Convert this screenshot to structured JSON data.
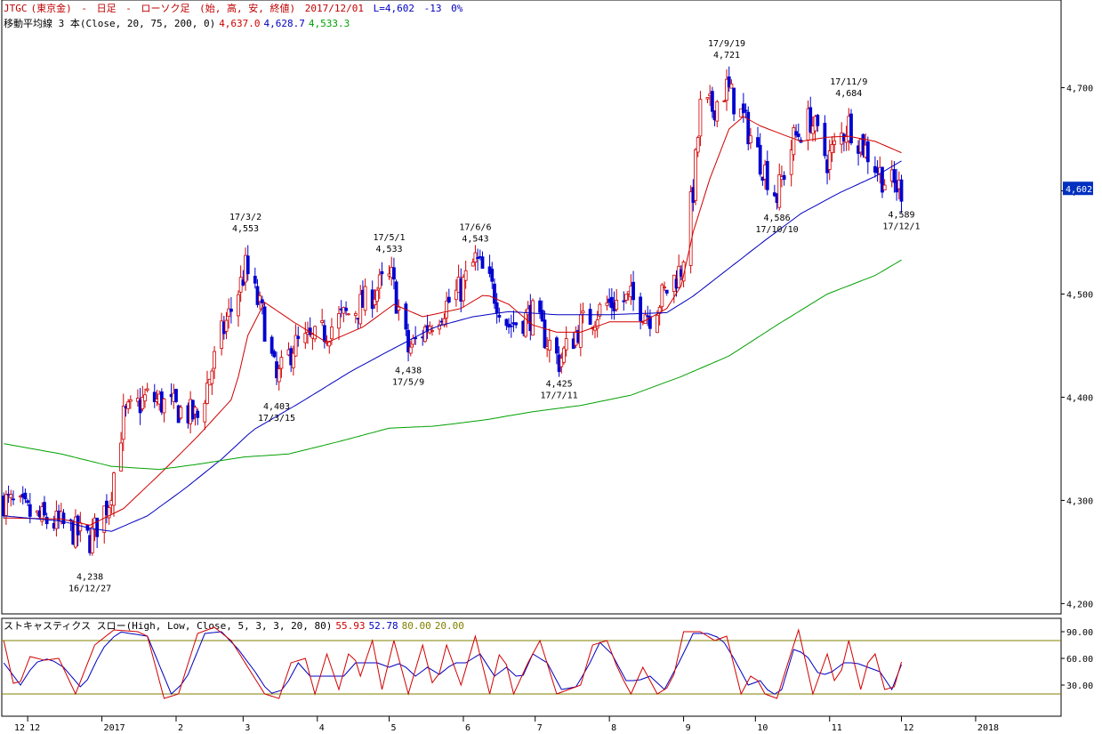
{
  "header": {
    "symbol": "JTGC",
    "instrument": "(東京金)",
    "sep1": "-",
    "period": "日足",
    "sep2": "-",
    "chart_type": "ローソク足",
    "ohlc_note": "(始, 高, 安, 終値)",
    "date": "2017/12/01",
    "last": "L=4,602",
    "change": "-13",
    "change_pct": "0%"
  },
  "ma_header": {
    "label": "移動平均線 3 本(Close, 20, 75, 200, 0)",
    "v20": "4,637.0",
    "v75": "4,628.7",
    "v200": "4,533.3"
  },
  "stoch_header": {
    "label": "ストキャスティクス スロー(High, Low, Close, 5, 3, 3, 20, 80)",
    "k": "55.93",
    "d": "52.78",
    "upper": "80.00",
    "lower": "20.00"
  },
  "price_tag": "4,602",
  "colors": {
    "ma20": "#d00000",
    "ma75": "#0000c0",
    "ma200": "#00a000",
    "candle_up_border": "#d00000",
    "candle_down": "#0000d0",
    "stoch_k": "#d00000",
    "stoch_d": "#0000c0",
    "stoch_lines": "#808000"
  },
  "chart_data": {
    "type": "candlestick",
    "y_axis": {
      "ticks": [
        "4,200",
        "4,300",
        "4,400",
        "4,500",
        "4,600",
        "4,700"
      ],
      "tick_values": [
        4200,
        4300,
        4400,
        4500,
        4600,
        4700
      ],
      "range": [
        4190,
        4785
      ]
    },
    "stoch_axis": {
      "ticks": [
        "30.00",
        "60.00",
        "90.00"
      ],
      "tick_values": [
        30,
        60,
        90
      ],
      "range": [
        0,
        100
      ]
    },
    "x_axis": {
      "labels": [
        "12",
        "2017",
        "2",
        "3",
        "4",
        "5",
        "6",
        "7",
        "8",
        "9",
        "10",
        "11",
        "12",
        "2018"
      ],
      "dates": [
        "2016-12-01",
        "2017-01-01",
        "2017-02-01",
        "2017-03-01",
        "2017-04-01",
        "2017-05-01",
        "2017-06-01",
        "2017-07-01",
        "2017-08-01",
        "2017-09-01",
        "2017-10-01",
        "2017-11-01",
        "2017-12-01",
        "2018-01-01"
      ]
    },
    "annotations": [
      {
        "date_label": "16/12/27",
        "price_label": "4,238",
        "value": 4238,
        "date": "2016-12-27",
        "pos": "below"
      },
      {
        "date_label": "17/3/2",
        "price_label": "4,553",
        "value": 4553,
        "date": "2017-03-02",
        "pos": "above"
      },
      {
        "date_label": "17/3/15",
        "price_label": "4,403",
        "value": 4403,
        "date": "2017-03-15",
        "pos": "below"
      },
      {
        "date_label": "17/5/1",
        "price_label": "4,533",
        "value": 4533,
        "date": "2017-05-01",
        "pos": "above"
      },
      {
        "date_label": "17/5/9",
        "price_label": "4,438",
        "value": 4438,
        "date": "2017-05-09",
        "pos": "below"
      },
      {
        "date_label": "17/6/6",
        "price_label": "4,543",
        "value": 4543,
        "date": "2017-06-06",
        "pos": "above"
      },
      {
        "date_label": "17/7/11",
        "price_label": "4,425",
        "value": 4425,
        "date": "2017-07-11",
        "pos": "below"
      },
      {
        "date_label": "17/9/19",
        "price_label": "4,721",
        "value": 4721,
        "date": "2017-09-19",
        "pos": "above"
      },
      {
        "date_label": "17/10/10",
        "price_label": "4,586",
        "value": 4586,
        "date": "2017-10-10",
        "pos": "below"
      },
      {
        "date_label": "17/11/9",
        "price_label": "4,684",
        "value": 4684,
        "date": "2017-11-09",
        "pos": "above"
      },
      {
        "date_label": "17/12/1",
        "price_label": "4,589",
        "value": 4589,
        "date": "2017-12-01",
        "pos": "below"
      }
    ],
    "close_anchors": [
      [
        "2016-11-21",
        4300
      ],
      [
        "2016-12-05",
        4283
      ],
      [
        "2016-12-15",
        4276
      ],
      [
        "2016-12-27",
        4262
      ],
      [
        "2017-01-04",
        4300
      ],
      [
        "2017-01-10",
        4380
      ],
      [
        "2017-01-20",
        4400
      ],
      [
        "2017-01-31",
        4390
      ],
      [
        "2017-02-10",
        4380
      ],
      [
        "2017-02-20",
        4460
      ],
      [
        "2017-02-28",
        4510
      ],
      [
        "2017-03-02",
        4525
      ],
      [
        "2017-03-09",
        4480
      ],
      [
        "2017-03-15",
        4415
      ],
      [
        "2017-03-22",
        4450
      ],
      [
        "2017-03-31",
        4455
      ],
      [
        "2017-04-10",
        4475
      ],
      [
        "2017-04-20",
        4490
      ],
      [
        "2017-04-28",
        4510
      ],
      [
        "2017-05-02",
        4515
      ],
      [
        "2017-05-09",
        4445
      ],
      [
        "2017-05-19",
        4475
      ],
      [
        "2017-05-31",
        4505
      ],
      [
        "2017-06-06",
        4533
      ],
      [
        "2017-06-13",
        4505
      ],
      [
        "2017-06-20",
        4470
      ],
      [
        "2017-06-30",
        4480
      ],
      [
        "2017-07-11",
        4435
      ],
      [
        "2017-07-20",
        4470
      ],
      [
        "2017-07-31",
        4490
      ],
      [
        "2017-08-10",
        4495
      ],
      [
        "2017-08-18",
        4480
      ],
      [
        "2017-08-31",
        4525
      ],
      [
        "2017-09-05",
        4600
      ],
      [
        "2017-09-08",
        4680
      ],
      [
        "2017-09-13",
        4680
      ],
      [
        "2017-09-19",
        4700
      ],
      [
        "2017-09-26",
        4670
      ],
      [
        "2017-10-03",
        4630
      ],
      [
        "2017-10-10",
        4595
      ],
      [
        "2017-10-17",
        4650
      ],
      [
        "2017-10-24",
        4670
      ],
      [
        "2017-10-31",
        4630
      ],
      [
        "2017-11-09",
        4665
      ],
      [
        "2017-11-16",
        4640
      ],
      [
        "2017-11-24",
        4610
      ],
      [
        "2017-12-01",
        4602
      ]
    ],
    "series": [
      {
        "name": "20",
        "anchors": [
          [
            "2016-11-21",
            4283
          ],
          [
            "2016-12-15",
            4282
          ],
          [
            "2016-12-27",
            4276
          ],
          [
            "2017-01-10",
            4292
          ],
          [
            "2017-01-25",
            4325
          ],
          [
            "2017-02-10",
            4362
          ],
          [
            "2017-02-25",
            4400
          ],
          [
            "2017-03-03",
            4460
          ],
          [
            "2017-03-10",
            4492
          ],
          [
            "2017-03-22",
            4473
          ],
          [
            "2017-04-05",
            4453
          ],
          [
            "2017-04-20",
            4468
          ],
          [
            "2017-05-03",
            4490
          ],
          [
            "2017-05-15",
            4478
          ],
          [
            "2017-05-31",
            4486
          ],
          [
            "2017-06-10",
            4500
          ],
          [
            "2017-06-20",
            4490
          ],
          [
            "2017-06-30",
            4470
          ],
          [
            "2017-07-10",
            4463
          ],
          [
            "2017-07-20",
            4463
          ],
          [
            "2017-08-01",
            4473
          ],
          [
            "2017-08-15",
            4473
          ],
          [
            "2017-08-25",
            4486
          ],
          [
            "2017-08-31",
            4508
          ],
          [
            "2017-09-05",
            4560
          ],
          [
            "2017-09-12",
            4612
          ],
          [
            "2017-09-20",
            4660
          ],
          [
            "2017-09-26",
            4672
          ],
          [
            "2017-10-03",
            4663
          ],
          [
            "2017-10-12",
            4655
          ],
          [
            "2017-10-20",
            4648
          ],
          [
            "2017-10-31",
            4652
          ],
          [
            "2017-11-09",
            4653
          ],
          [
            "2017-11-20",
            4648
          ],
          [
            "2017-12-01",
            4637
          ]
        ]
      },
      {
        "name": "75",
        "anchors": [
          [
            "2016-11-21",
            4285
          ],
          [
            "2016-12-15",
            4280
          ],
          [
            "2016-12-27",
            4273
          ],
          [
            "2017-01-05",
            4270
          ],
          [
            "2017-01-20",
            4285
          ],
          [
            "2017-02-05",
            4312
          ],
          [
            "2017-02-20",
            4340
          ],
          [
            "2017-03-05",
            4368
          ],
          [
            "2017-03-25",
            4395
          ],
          [
            "2017-04-15",
            4425
          ],
          [
            "2017-05-01",
            4445
          ],
          [
            "2017-05-20",
            4468
          ],
          [
            "2017-06-05",
            4478
          ],
          [
            "2017-06-20",
            4483
          ],
          [
            "2017-07-10",
            4480
          ],
          [
            "2017-08-01",
            4480
          ],
          [
            "2017-08-25",
            4482
          ],
          [
            "2017-09-05",
            4498
          ],
          [
            "2017-09-20",
            4525
          ],
          [
            "2017-10-05",
            4552
          ],
          [
            "2017-10-20",
            4578
          ],
          [
            "2017-11-05",
            4598
          ],
          [
            "2017-11-20",
            4614
          ],
          [
            "2017-12-01",
            4629
          ]
        ]
      },
      {
        "name": "200",
        "anchors": [
          [
            "2016-11-21",
            4355
          ],
          [
            "2016-12-15",
            4345
          ],
          [
            "2017-01-05",
            4333
          ],
          [
            "2017-01-25",
            4330
          ],
          [
            "2017-02-10",
            4335
          ],
          [
            "2017-03-01",
            4342
          ],
          [
            "2017-03-20",
            4345
          ],
          [
            "2017-04-10",
            4357
          ],
          [
            "2017-05-01",
            4370
          ],
          [
            "2017-05-20",
            4372
          ],
          [
            "2017-06-10",
            4378
          ],
          [
            "2017-06-30",
            4386
          ],
          [
            "2017-07-20",
            4392
          ],
          [
            "2017-08-10",
            4402
          ],
          [
            "2017-08-31",
            4420
          ],
          [
            "2017-09-20",
            4440
          ],
          [
            "2017-10-10",
            4470
          ],
          [
            "2017-10-31",
            4500
          ],
          [
            "2017-11-20",
            4518
          ],
          [
            "2017-12-01",
            4533
          ]
        ]
      }
    ],
    "stoch_k_anchors": [
      [
        "2016-11-21",
        80
      ],
      [
        "2016-11-26",
        20
      ],
      [
        "2016-12-02",
        62
      ],
      [
        "2016-12-08",
        58
      ],
      [
        "2016-12-14",
        60
      ],
      [
        "2016-12-21",
        20
      ],
      [
        "2016-12-29",
        75
      ],
      [
        "2017-01-06",
        92
      ],
      [
        "2017-01-16",
        90
      ],
      [
        "2017-01-20",
        85
      ],
      [
        "2017-01-27",
        15
      ],
      [
        "2017-02-02",
        20
      ],
      [
        "2017-02-10",
        88
      ],
      [
        "2017-02-17",
        95
      ],
      [
        "2017-02-24",
        80
      ],
      [
        "2017-03-03",
        50
      ],
      [
        "2017-03-10",
        20
      ],
      [
        "2017-03-16",
        15
      ],
      [
        "2017-03-21",
        55
      ],
      [
        "2017-03-27",
        60
      ],
      [
        "2017-03-31",
        20
      ],
      [
        "2017-04-05",
        65
      ],
      [
        "2017-04-10",
        25
      ],
      [
        "2017-04-15",
        75
      ],
      [
        "2017-04-19",
        40
      ],
      [
        "2017-04-24",
        80
      ],
      [
        "2017-04-28",
        25
      ],
      [
        "2017-05-03",
        80
      ],
      [
        "2017-05-09",
        20
      ],
      [
        "2017-05-15",
        75
      ],
      [
        "2017-05-20",
        22
      ],
      [
        "2017-05-25",
        75
      ],
      [
        "2017-05-31",
        30
      ],
      [
        "2017-06-06",
        85
      ],
      [
        "2017-06-12",
        20
      ],
      [
        "2017-06-17",
        75
      ],
      [
        "2017-06-22",
        20
      ],
      [
        "2017-06-28",
        55
      ],
      [
        "2017-07-03",
        80
      ],
      [
        "2017-07-10",
        20
      ],
      [
        "2017-07-15",
        25
      ],
      [
        "2017-07-20",
        30
      ],
      [
        "2017-07-25",
        75
      ],
      [
        "2017-07-31",
        80
      ],
      [
        "2017-08-05",
        45
      ],
      [
        "2017-08-10",
        20
      ],
      [
        "2017-08-15",
        50
      ],
      [
        "2017-08-21",
        20
      ],
      [
        "2017-08-27",
        30
      ],
      [
        "2017-09-01",
        90
      ],
      [
        "2017-09-08",
        90
      ],
      [
        "2017-09-14",
        80
      ],
      [
        "2017-09-19",
        85
      ],
      [
        "2017-09-25",
        20
      ],
      [
        "2017-09-30",
        45
      ],
      [
        "2017-10-05",
        20
      ],
      [
        "2017-10-10",
        15
      ],
      [
        "2017-10-14",
        50
      ],
      [
        "2017-10-19",
        92
      ],
      [
        "2017-10-25",
        20
      ],
      [
        "2017-10-31",
        65
      ],
      [
        "2017-11-04",
        25
      ],
      [
        "2017-11-09",
        80
      ],
      [
        "2017-11-14",
        25
      ],
      [
        "2017-11-19",
        75
      ],
      [
        "2017-11-24",
        25
      ],
      [
        "2017-11-28",
        28
      ],
      [
        "2017-12-01",
        56
      ]
    ],
    "stoch_d_anchors": [
      [
        "2016-11-21",
        55
      ],
      [
        "2016-11-28",
        30
      ],
      [
        "2016-12-04",
        55
      ],
      [
        "2016-12-10",
        60
      ],
      [
        "2016-12-16",
        50
      ],
      [
        "2016-12-24",
        25
      ],
      [
        "2017-01-01",
        70
      ],
      [
        "2017-01-08",
        90
      ],
      [
        "2017-01-20",
        85
      ],
      [
        "2017-01-30",
        20
      ],
      [
        "2017-02-05",
        35
      ],
      [
        "2017-02-13",
        88
      ],
      [
        "2017-02-20",
        90
      ],
      [
        "2017-02-27",
        70
      ],
      [
        "2017-03-06",
        45
      ],
      [
        "2017-03-12",
        20
      ],
      [
        "2017-03-18",
        25
      ],
      [
        "2017-03-24",
        55
      ],
      [
        "2017-03-29",
        40
      ],
      [
        "2017-04-07",
        40
      ],
      [
        "2017-04-12",
        40
      ],
      [
        "2017-04-17",
        55
      ],
      [
        "2017-04-22",
        55
      ],
      [
        "2017-04-26",
        55
      ],
      [
        "2017-05-01",
        50
      ],
      [
        "2017-05-06",
        55
      ],
      [
        "2017-05-12",
        40
      ],
      [
        "2017-05-17",
        50
      ],
      [
        "2017-05-22",
        42
      ],
      [
        "2017-05-28",
        55
      ],
      [
        "2017-06-02",
        55
      ],
      [
        "2017-06-08",
        65
      ],
      [
        "2017-06-14",
        40
      ],
      [
        "2017-06-19",
        50
      ],
      [
        "2017-06-25",
        35
      ],
      [
        "2017-06-30",
        65
      ],
      [
        "2017-07-06",
        55
      ],
      [
        "2017-07-12",
        25
      ],
      [
        "2017-07-18",
        28
      ],
      [
        "2017-07-23",
        50
      ],
      [
        "2017-07-28",
        78
      ],
      [
        "2017-08-02",
        65
      ],
      [
        "2017-08-08",
        35
      ],
      [
        "2017-08-13",
        35
      ],
      [
        "2017-08-18",
        40
      ],
      [
        "2017-08-24",
        25
      ],
      [
        "2017-08-30",
        55
      ],
      [
        "2017-09-05",
        88
      ],
      [
        "2017-09-11",
        88
      ],
      [
        "2017-09-17",
        82
      ],
      [
        "2017-09-22",
        60
      ],
      [
        "2017-09-28",
        30
      ],
      [
        "2017-10-03",
        35
      ],
      [
        "2017-10-08",
        18
      ],
      [
        "2017-10-12",
        25
      ],
      [
        "2017-10-17",
        70
      ],
      [
        "2017-10-22",
        65
      ],
      [
        "2017-10-28",
        40
      ],
      [
        "2017-11-02",
        45
      ],
      [
        "2017-11-07",
        55
      ],
      [
        "2017-11-12",
        55
      ],
      [
        "2017-11-17",
        50
      ],
      [
        "2017-11-22",
        45
      ],
      [
        "2017-11-27",
        25
      ],
      [
        "2017-12-01",
        53
      ]
    ]
  }
}
